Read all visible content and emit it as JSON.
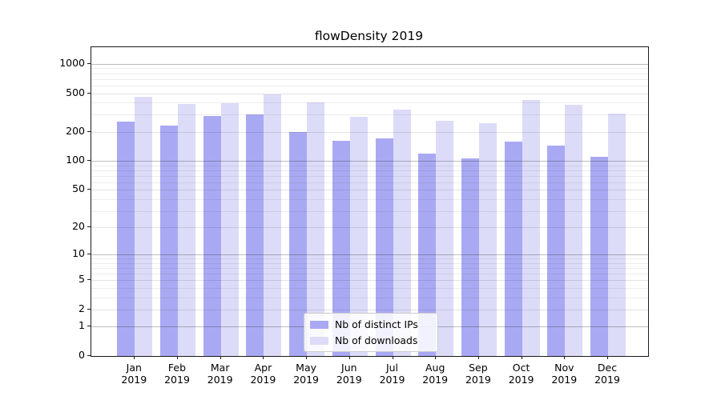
{
  "chart_data": {
    "type": "bar",
    "title": "flowDensity 2019",
    "categories": [
      "Jan",
      "Feb",
      "Mar",
      "Apr",
      "May",
      "Jun",
      "Jul",
      "Aug",
      "Sep",
      "Oct",
      "Nov",
      "Dec"
    ],
    "category_year": "2019",
    "series": [
      {
        "name": "Nb of distinct IPs",
        "color": "#a9a9f3",
        "values": [
          255,
          230,
          290,
          305,
          200,
          162,
          170,
          118,
          106,
          160,
          145,
          110
        ]
      },
      {
        "name": "Nb of downloads",
        "color": "#dcdcf8",
        "values": [
          455,
          385,
          395,
          485,
          400,
          285,
          340,
          260,
          246,
          425,
          380,
          310
        ]
      }
    ],
    "xlabel": "",
    "ylabel": "",
    "yscale": "log1p",
    "ylim": [
      0,
      1485
    ],
    "yticks": [
      0,
      1,
      2,
      5,
      10,
      20,
      50,
      100,
      200,
      500,
      1000
    ],
    "decade_gridlines": [
      1,
      10,
      100,
      1000
    ],
    "minor_gridlines": [
      3,
      4,
      6,
      7,
      8,
      9,
      30,
      40,
      60,
      70,
      80,
      90,
      300,
      400,
      600,
      700,
      800,
      900
    ],
    "grid": "horizontal",
    "legend": {
      "position": "lower-center"
    }
  }
}
